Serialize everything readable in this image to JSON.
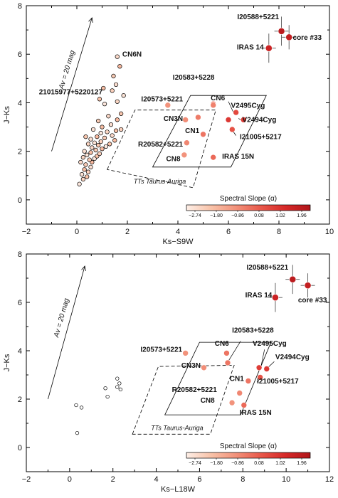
{
  "chart_data": [
    {
      "type": "scatter",
      "xlabel": "Ks−S9W",
      "ylabel": "J−Ks",
      "xlim": [
        -2,
        10
      ],
      "ylim": [
        -1,
        8
      ],
      "xticks": [
        -2,
        0,
        2,
        4,
        6,
        8,
        10
      ],
      "yticks": [
        0,
        2,
        4,
        6,
        8
      ],
      "av_label": "Av = 20 mag",
      "av_arrow": {
        "x0": -1.0,
        "y0": 2.0,
        "x1": 0.6,
        "y1": 7.5
      },
      "region_label": "TTs Taurus-Auriga",
      "dashed_region": [
        [
          1.2,
          1.25
        ],
        [
          2.3,
          3.7
        ],
        [
          5.5,
          3.7
        ],
        [
          4.6,
          0.5
        ]
      ],
      "solid_region": [
        [
          3.0,
          1.35
        ],
        [
          4.5,
          4.3
        ],
        [
          7.5,
          4.3
        ],
        [
          6.1,
          1.35
        ]
      ],
      "colorbar": {
        "title": "Spectral Slope (α)",
        "min": -2.74,
        "max": 1.96,
        "ticks": [
          "−2.74",
          "−1.80",
          "−0.86",
          "0.08",
          "1.02",
          "1.96"
        ],
        "colors": [
          "#fdeee6",
          "#f8c2a8",
          "#f2917a",
          "#e8584a",
          "#d62828",
          "#b0161a"
        ]
      },
      "field_stars": [
        [
          0.1,
          0.65
        ],
        [
          0.25,
          0.85
        ],
        [
          0.4,
          0.95
        ],
        [
          0.2,
          1.05
        ],
        [
          0.45,
          1.15
        ],
        [
          0.3,
          1.25
        ],
        [
          0.55,
          1.35
        ],
        [
          0.35,
          1.45
        ],
        [
          0.6,
          1.55
        ],
        [
          0.15,
          1.55
        ],
        [
          0.5,
          1.65
        ],
        [
          0.7,
          1.7
        ],
        [
          0.25,
          1.75
        ],
        [
          0.8,
          1.8
        ],
        [
          0.4,
          1.85
        ],
        [
          0.9,
          1.9
        ],
        [
          0.55,
          1.95
        ],
        [
          0.3,
          2.0
        ],
        [
          0.75,
          2.05
        ],
        [
          1.0,
          2.1
        ],
        [
          0.6,
          2.15
        ],
        [
          0.85,
          2.25
        ],
        [
          1.15,
          2.2
        ],
        [
          0.45,
          2.3
        ],
        [
          1.3,
          2.3
        ],
        [
          0.7,
          2.35
        ],
        [
          0.95,
          2.4
        ],
        [
          1.5,
          2.45
        ],
        [
          0.55,
          2.5
        ],
        [
          1.1,
          2.55
        ],
        [
          0.8,
          2.6
        ],
        [
          1.4,
          2.65
        ],
        [
          0.35,
          2.6
        ],
        [
          0.95,
          2.75
        ],
        [
          1.2,
          2.8
        ],
        [
          1.55,
          2.85
        ],
        [
          0.65,
          2.9
        ],
        [
          1.75,
          2.9
        ],
        [
          1.0,
          3.0
        ],
        [
          1.35,
          3.1
        ],
        [
          0.85,
          3.25
        ],
        [
          1.6,
          3.3
        ],
        [
          1.25,
          3.45
        ],
        [
          1.75,
          3.55
        ],
        [
          1.1,
          3.95
        ],
        [
          1.6,
          4.05
        ],
        [
          0.9,
          4.15
        ],
        [
          1.85,
          4.3
        ],
        [
          1.4,
          4.5
        ],
        [
          1.05,
          4.6
        ],
        [
          1.55,
          4.75
        ],
        [
          1.45,
          5.1
        ],
        [
          1.7,
          5.5
        ],
        [
          1.6,
          5.9
        ]
      ],
      "sources": [
        {
          "x": 8.1,
          "y": 6.95,
          "alpha": 1.7,
          "err": 0.6
        },
        {
          "x": 8.4,
          "y": 6.7,
          "alpha": 1.5,
          "err": 0.5
        },
        {
          "x": 7.6,
          "y": 6.25,
          "alpha": 1.3,
          "err": 0.6
        },
        {
          "x": 5.4,
          "y": 3.95,
          "alpha": -0.4
        },
        {
          "x": 5.4,
          "y": 3.9,
          "alpha": -0.6
        },
        {
          "x": 3.6,
          "y": 3.9,
          "alpha": -0.9
        },
        {
          "x": 6.3,
          "y": 3.6,
          "alpha": 0.4
        },
        {
          "x": 4.8,
          "y": 3.4,
          "alpha": -0.5
        },
        {
          "x": 4.3,
          "y": 3.3,
          "alpha": -0.8
        },
        {
          "x": 6.0,
          "y": 3.3,
          "alpha": 0.7
        },
        {
          "x": 6.6,
          "y": 3.3,
          "alpha": 0.6
        },
        {
          "x": 6.15,
          "y": 2.9,
          "alpha": 0.2
        },
        {
          "x": 5.0,
          "y": 2.7,
          "alpha": -0.4
        },
        {
          "x": 4.35,
          "y": 2.35,
          "alpha": -0.7
        },
        {
          "x": 4.25,
          "y": 1.85,
          "alpha": -0.9
        },
        {
          "x": 5.4,
          "y": 1.75,
          "alpha": -0.2
        }
      ],
      "labels": [
        {
          "text": "core #33",
          "x": 8.55,
          "y": 6.6,
          "anchor": "start"
        },
        {
          "text": "I20588+5221",
          "x": 8.0,
          "y": 7.45,
          "anchor": "end"
        },
        {
          "text": "IRAS 14",
          "x": 7.4,
          "y": 6.2,
          "anchor": "end"
        },
        {
          "text": "CN6N",
          "x": 1.8,
          "y": 5.9,
          "anchor": "start"
        },
        {
          "text": "21015977+5220127",
          "x": -1.5,
          "y": 4.35,
          "anchor": "start"
        },
        {
          "text": "I20583+5228",
          "x": 5.45,
          "y": 4.95,
          "anchor": "end"
        },
        {
          "text": "I20573+5221",
          "x": 4.2,
          "y": 4.05,
          "anchor": "end"
        },
        {
          "text": "CN6",
          "x": 5.3,
          "y": 4.1,
          "anchor": "start"
        },
        {
          "text": "CN3N",
          "x": 4.2,
          "y": 3.25,
          "anchor": "end"
        },
        {
          "text": "V2495Cyg",
          "x": 6.1,
          "y": 3.8,
          "anchor": "start"
        },
        {
          "text": "V2494Cyg",
          "x": 6.55,
          "y": 3.2,
          "anchor": "start"
        },
        {
          "text": "CN1",
          "x": 4.85,
          "y": 2.75,
          "anchor": "end"
        },
        {
          "text": "I21005+5217",
          "x": 6.45,
          "y": 2.5,
          "anchor": "start"
        },
        {
          "text": "R20582+5221",
          "x": 4.2,
          "y": 2.2,
          "anchor": "end"
        },
        {
          "text": "IRAS 15N",
          "x": 5.75,
          "y": 1.7,
          "anchor": "start"
        },
        {
          "text": "CN8",
          "x": 4.1,
          "y": 1.6,
          "anchor": "end"
        }
      ],
      "leader_lines": [
        [
          6.0,
          4.05,
          6.2,
          3.6
        ],
        [
          6.4,
          3.35,
          6.6,
          3.25
        ],
        [
          6.1,
          2.95,
          6.3,
          2.65
        ]
      ]
    },
    {
      "type": "scatter",
      "xlabel": "Ks−L18W",
      "ylabel": "J−Ks",
      "xlim": [
        -2,
        12
      ],
      "ylim": [
        -1,
        8
      ],
      "xticks": [
        -2,
        0,
        2,
        4,
        6,
        8,
        10,
        12
      ],
      "yticks": [
        0,
        2,
        4,
        6,
        8
      ],
      "av_label": "Av = 20 mag",
      "av_arrow": {
        "x0": -1.0,
        "y0": 2.0,
        "x1": 0.7,
        "y1": 7.5
      },
      "region_label": "TTs Taurus-Auriga",
      "dashed_region": [
        [
          2.9,
          0.55
        ],
        [
          4.1,
          3.35
        ],
        [
          7.6,
          3.4
        ],
        [
          6.5,
          0.55
        ]
      ],
      "solid_region": [
        [
          4.4,
          1.35
        ],
        [
          6.0,
          4.35
        ],
        [
          9.3,
          4.35
        ],
        [
          7.9,
          1.35
        ]
      ],
      "colorbar": {
        "title": "Spectral Slope (α)",
        "min": -2.74,
        "max": 1.96,
        "ticks": [
          "−2.74",
          "−1.80",
          "−0.86",
          "0.08",
          "1.02",
          "1.96"
        ],
        "colors": [
          "#fdeee6",
          "#f8c2a8",
          "#f2917a",
          "#e8584a",
          "#d62828",
          "#b0161a"
        ]
      },
      "field_stars": [
        [
          0.35,
          0.6
        ],
        [
          0.55,
          1.65
        ],
        [
          0.3,
          1.75
        ],
        [
          1.75,
          2.1
        ],
        [
          1.65,
          2.45
        ],
        [
          2.2,
          2.5
        ],
        [
          2.35,
          2.4
        ],
        [
          2.2,
          2.85
        ],
        [
          2.3,
          2.65
        ]
      ],
      "sources": [
        {
          "x": 10.3,
          "y": 6.95,
          "alpha": 1.7,
          "err": 0.6
        },
        {
          "x": 11.0,
          "y": 6.7,
          "alpha": 1.5,
          "err": 0.5
        },
        {
          "x": 9.5,
          "y": 6.2,
          "alpha": 1.3,
          "err": 0.6
        },
        {
          "x": 7.25,
          "y": 3.9,
          "alpha": -0.4
        },
        {
          "x": 7.3,
          "y": 3.5,
          "alpha": -0.4
        },
        {
          "x": 5.35,
          "y": 3.9,
          "alpha": -0.9
        },
        {
          "x": 8.75,
          "y": 3.3,
          "alpha": 0.6
        },
        {
          "x": 9.1,
          "y": 3.25,
          "alpha": 0.7
        },
        {
          "x": 6.2,
          "y": 3.3,
          "alpha": -0.8
        },
        {
          "x": 8.8,
          "y": 2.9,
          "alpha": 0.2
        },
        {
          "x": 8.25,
          "y": 2.75,
          "alpha": -0.4
        },
        {
          "x": 7.85,
          "y": 2.25,
          "alpha": -0.7
        },
        {
          "x": 7.5,
          "y": 1.85,
          "alpha": -0.9
        },
        {
          "x": 8.05,
          "y": 1.75,
          "alpha": -0.2
        }
      ],
      "labels": [
        {
          "text": "core #33",
          "x": 10.55,
          "y": 6.0,
          "anchor": "start"
        },
        {
          "text": "I20588+5221",
          "x": 10.1,
          "y": 7.35,
          "anchor": "end"
        },
        {
          "text": "IRAS 14",
          "x": 9.35,
          "y": 6.2,
          "anchor": "end"
        },
        {
          "text": "I20583+5228",
          "x": 7.5,
          "y": 4.75,
          "anchor": "start"
        },
        {
          "text": "I20573+5221",
          "x": 5.2,
          "y": 3.95,
          "anchor": "end"
        },
        {
          "text": "CN6",
          "x": 6.7,
          "y": 4.2,
          "anchor": "start"
        },
        {
          "text": "CN3N",
          "x": 6.05,
          "y": 3.3,
          "anchor": "end"
        },
        {
          "text": "V2495Cyg",
          "x": 8.45,
          "y": 4.2,
          "anchor": "start"
        },
        {
          "text": "V2494Cyg",
          "x": 9.5,
          "y": 3.65,
          "anchor": "start"
        },
        {
          "text": "CN1",
          "x": 8.05,
          "y": 2.75,
          "anchor": "end"
        },
        {
          "text": "I21005+5217",
          "x": 8.65,
          "y": 2.65,
          "anchor": "start"
        },
        {
          "text": "R20582+5221",
          "x": 6.8,
          "y": 2.3,
          "anchor": "end"
        },
        {
          "text": "IRAS 15N",
          "x": 7.85,
          "y": 1.35,
          "anchor": "start"
        },
        {
          "text": "CN8",
          "x": 6.7,
          "y": 1.85,
          "anchor": "end"
        }
      ],
      "leader_lines": [
        [
          7.9,
          4.4,
          7.35,
          3.6
        ],
        [
          9.0,
          4.05,
          8.85,
          3.4
        ],
        [
          9.45,
          3.55,
          9.15,
          3.3
        ],
        [
          8.65,
          2.7,
          8.85,
          2.9
        ]
      ]
    }
  ]
}
